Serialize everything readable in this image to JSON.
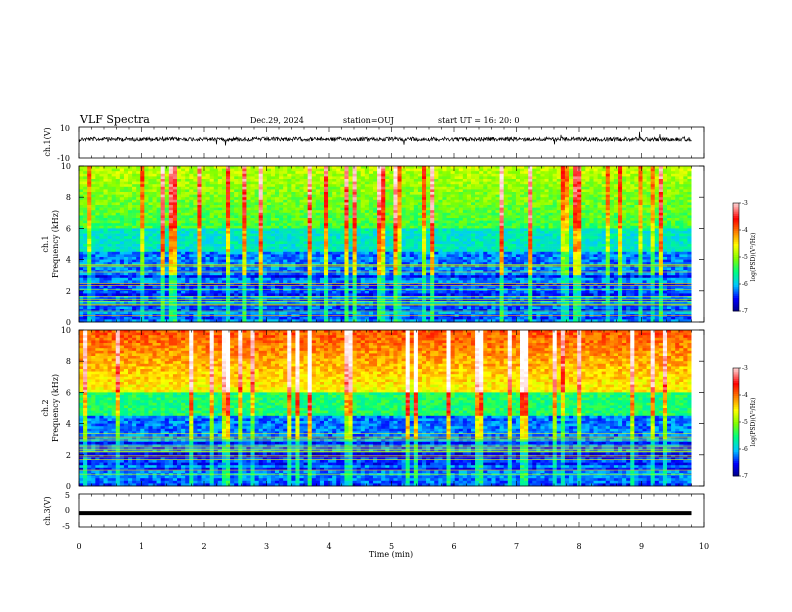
{
  "header": {
    "title": "VLF Spectra",
    "date": "Dec.29, 2024",
    "station": "station=OUJ",
    "start_ut": "start  UT =   16: 20: 0"
  },
  "chart_data": [
    {
      "type": "line",
      "panel": "ch1-waveform",
      "ylabel": "ch.1(V)",
      "ylim": [
        -10,
        10
      ],
      "y_ticks": [
        "10",
        "-10"
      ],
      "xlim": [
        0,
        10
      ],
      "baseline_v": 2.2,
      "grid": false
    },
    {
      "type": "heatmap",
      "panel": "ch1-spectrogram",
      "ylabel_top": "ch.1",
      "ylabel": "Frequency (kHz)",
      "ylim": [
        0,
        10
      ],
      "y_ticks": [
        "0",
        "2",
        "4",
        "6",
        "8",
        "10"
      ],
      "xlim": [
        0,
        9.8
      ],
      "colorbar": {
        "label": "log(PSD)(V²/Hz)",
        "range": [
          -7,
          -3
        ],
        "ticks": [
          "-3",
          "-4",
          "-5",
          "-6",
          "-7"
        ],
        "colors": [
          "#000080",
          "#0000ff",
          "#00c8ff",
          "#00ff80",
          "#80ff00",
          "#ffff00",
          "#ff8000",
          "#ff0000",
          "#ffc0c0",
          "#ffffff"
        ]
      }
    },
    {
      "type": "heatmap",
      "panel": "ch2-spectrogram",
      "ylabel_top": "ch.2",
      "ylabel": "Frequency (kHz)",
      "ylim": [
        0,
        10
      ],
      "y_ticks": [
        "0",
        "2",
        "4",
        "6",
        "8",
        "10"
      ],
      "xlim": [
        0,
        9.8
      ],
      "colorbar": {
        "label": "log(PSD)(V²/Hz)",
        "range": [
          -7,
          -3
        ],
        "ticks": [
          "-3",
          "-4",
          "-5",
          "-6",
          "-7"
        ]
      }
    },
    {
      "type": "line",
      "panel": "ch3-waveform",
      "ylabel": "ch.3(V)",
      "ylim": [
        -5,
        5
      ],
      "y_ticks": [
        "5",
        "0",
        "-5"
      ],
      "xlim": [
        0,
        9.8
      ],
      "constant_v": -0.8
    }
  ],
  "xaxis": {
    "label": "Time (min)",
    "ticks": [
      "0",
      "1",
      "2",
      "3",
      "4",
      "5",
      "6",
      "7",
      "8",
      "9",
      "10"
    ],
    "range": [
      0,
      10
    ]
  }
}
